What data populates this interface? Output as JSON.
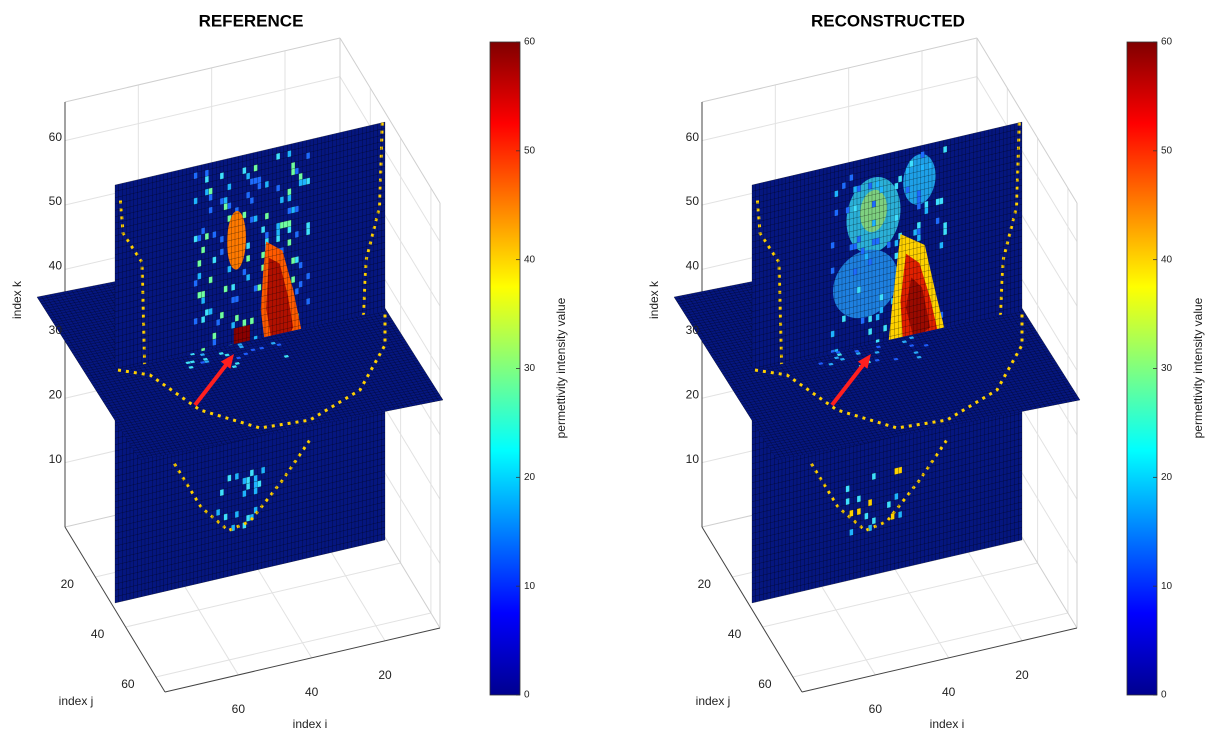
{
  "chart_data": [
    {
      "type": "slice3d",
      "title": "REFERENCE",
      "xlabel": "index i",
      "ylabel": "index j",
      "zlabel": "index k",
      "xlim": [
        5,
        80
      ],
      "xticks": [
        20,
        40,
        60
      ],
      "ylim": [
        0,
        66
      ],
      "yticks": [
        20,
        40,
        60
      ],
      "zlim": [
        0,
        66
      ],
      "zticks": [
        10,
        20,
        30,
        40,
        50,
        60
      ],
      "grid": true,
      "colorbar": {
        "label": "permettivity intensity value",
        "lim": [
          0,
          60
        ],
        "ticks": [
          0,
          10,
          20,
          30,
          40,
          50,
          60
        ],
        "colormap": "jet"
      }
    },
    {
      "type": "slice3d",
      "title": "RECONSTRUCTED",
      "xlabel": "index i",
      "ylabel": "index j",
      "zlabel": "index k",
      "xlim": [
        5,
        80
      ],
      "xticks": [
        20,
        40,
        60
      ],
      "ylim": [
        0,
        66
      ],
      "yticks": [
        20,
        40,
        60
      ],
      "zlim": [
        0,
        66
      ],
      "zticks": [
        10,
        20,
        30,
        40,
        50,
        60
      ],
      "grid": true,
      "colorbar": {
        "label": "permettivity intensity value",
        "lim": [
          0,
          60
        ],
        "ticks": [
          0,
          10,
          20,
          30,
          40,
          50,
          60
        ],
        "colormap": "jet"
      }
    }
  ]
}
